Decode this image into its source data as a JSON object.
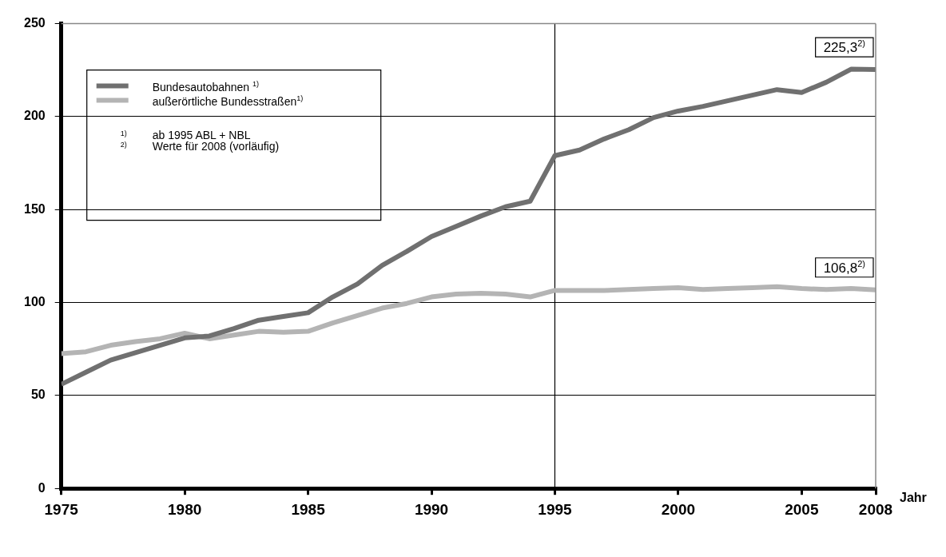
{
  "chart_data": {
    "type": "line",
    "xlabel": "Jahr",
    "x": [
      1975,
      1976,
      1977,
      1978,
      1979,
      1980,
      1981,
      1982,
      1983,
      1984,
      1985,
      1986,
      1987,
      1988,
      1989,
      1990,
      1991,
      1992,
      1993,
      1994,
      1995,
      1996,
      1997,
      1998,
      1999,
      2000,
      2001,
      2002,
      2003,
      2004,
      2005,
      2006,
      2007,
      2008
    ],
    "series": [
      {
        "name": "Bundesautobahnen $^{1)}$",
        "color": "#707070",
        "values": [
          56,
          62.5,
          69,
          73,
          77,
          81,
          82,
          86,
          90.5,
          92.5,
          94.5,
          103,
          110,
          120,
          127.5,
          135.5,
          141,
          146.5,
          151.5,
          154.5,
          179,
          182,
          188,
          193,
          199.5,
          203,
          205.5,
          208.5,
          211.5,
          214.5,
          213,
          218.5,
          225.5,
          225.3
        ]
      },
      {
        "name": "außerörtliche Bundesstraßen$^{1)}$",
        "color": "#b4b4b4",
        "values": [
          72.5,
          73.5,
          77,
          79,
          80.5,
          83.5,
          80.5,
          82.5,
          84.5,
          84,
          84.5,
          89,
          93,
          97,
          99.5,
          103,
          104.5,
          105,
          104.5,
          103,
          106.5,
          106.5,
          106.5,
          107,
          107.5,
          108,
          107,
          107.5,
          108,
          108.5,
          107.5,
          107,
          107.5,
          106.8
        ]
      }
    ],
    "xlim": [
      1975,
      2008
    ],
    "xticks": [
      1975,
      1980,
      1985,
      1990,
      1995,
      2000,
      2005,
      2008
    ],
    "ylim": [
      0,
      250
    ],
    "yticks": [
      0,
      50,
      100,
      150,
      200,
      250
    ],
    "grid": "y",
    "legend": "top left",
    "marker": "none",
    "line_style": "solid",
    "ref_lines": [
      {
        "axis": "x",
        "value": 1995,
        "color": "#000000"
      }
    ],
    "annotations": [
      "$^{1)}$ ab 1995 ABL + NBL",
      "$^{2)}$ Werte für 2008 (vorläufig)",
      {
        "text": "225,3$^{2)}$",
        "x": 2008,
        "y": 225.3
      },
      {
        "text": "106,8$^{2)}$",
        "x": 2008,
        "y": 106.8
      }
    ]
  }
}
